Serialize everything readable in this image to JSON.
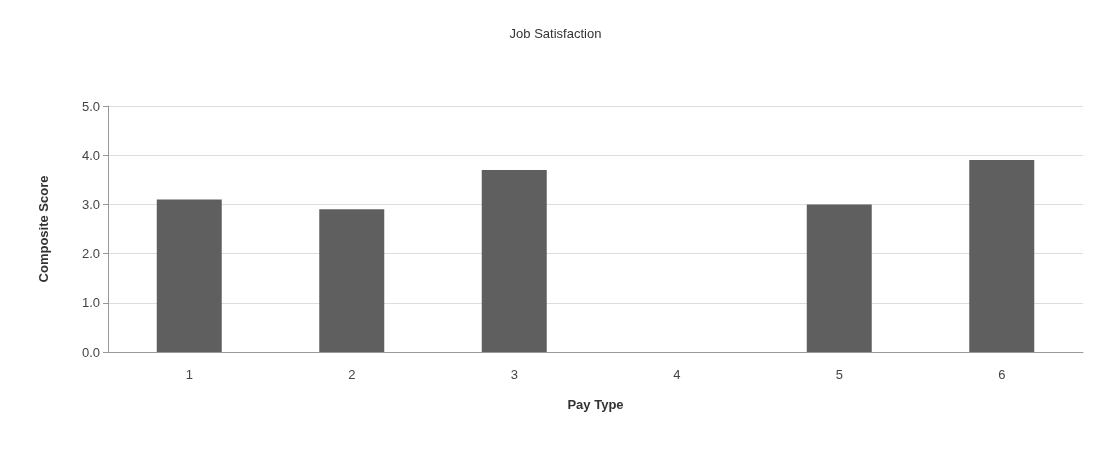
{
  "chart_data": {
    "type": "bar",
    "title": "Job Satisfaction",
    "xlabel": "Pay Type",
    "ylabel": "Composite Score",
    "categories": [
      "1",
      "2",
      "3",
      "4",
      "5",
      "6"
    ],
    "values": [
      3.1,
      2.9,
      3.7,
      null,
      3.0,
      3.9
    ],
    "color": "#5f5f5f",
    "ylim": [
      0,
      5
    ],
    "yticks": [
      {
        "value": 0,
        "label": "0.0"
      },
      {
        "value": 1,
        "label": "1.0"
      },
      {
        "value": 2,
        "label": "2.0"
      },
      {
        "value": 3,
        "label": "3.0"
      },
      {
        "value": 4,
        "label": "4.0"
      },
      {
        "value": 5,
        "label": "5.0"
      }
    ],
    "grid": "y"
  }
}
